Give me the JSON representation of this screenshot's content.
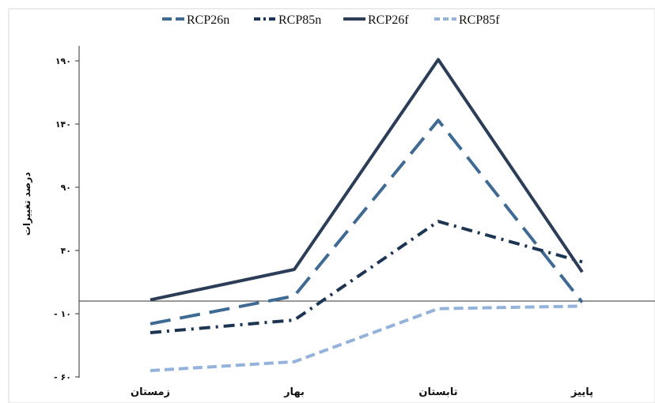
{
  "chart_data": {
    "type": "line",
    "categories": [
      "زمستان",
      "بهار",
      "تابستان",
      "پاییز"
    ],
    "ylabel": "درصد تغییرات",
    "yticks": [
      -60,
      -10,
      40,
      90,
      140,
      190
    ],
    "ytick_labels": [
      "- ۶۰",
      "- ۱۰",
      "۴۰",
      "۹۰",
      "۱۴۰",
      "۱۹۰"
    ],
    "ylim": [
      -60,
      205
    ],
    "series": [
      {
        "name": "RCP26n",
        "values": [
          -18,
          4,
          143,
          -1
        ],
        "color": "#3f6a93",
        "dash": "long-dash"
      },
      {
        "name": "RCP85n",
        "values": [
          -25,
          -15,
          63,
          31
        ],
        "color": "#1c3553",
        "dash": "dash-dot"
      },
      {
        "name": "RCP26f",
        "values": [
          1,
          25,
          191,
          23
        ],
        "color": "#2b3d57",
        "dash": "solid"
      },
      {
        "name": "RCP85f",
        "values": [
          -55,
          -48,
          -6,
          -4
        ],
        "color": "#94b3da",
        "dash": "dash"
      }
    ],
    "grid": false,
    "legend_position": "top"
  }
}
